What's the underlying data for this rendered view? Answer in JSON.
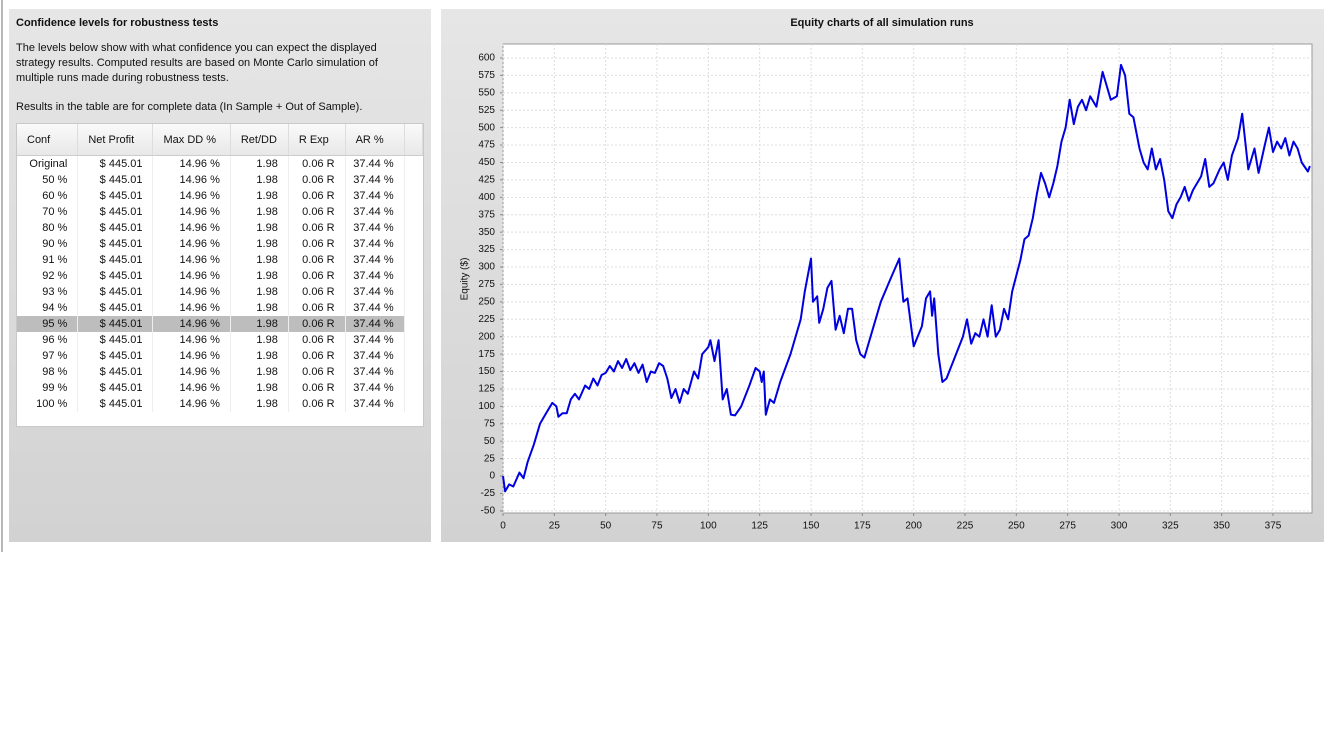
{
  "left_panel": {
    "title": "Confidence levels for robustness tests",
    "description": "The levels below show with what confidence you can expect the displayed strategy results. Computed results are based on Monte Carlo simulation of multiple runs made during robustness tests.",
    "note": "Results in the table are for complete data (In Sample + Out of Sample)."
  },
  "table": {
    "columns": [
      "Conf",
      "Net Profit",
      "Max DD %",
      "Ret/DD",
      "R Exp",
      "AR %"
    ],
    "rows": [
      [
        "Original",
        "$ 445.01",
        "14.96 %",
        "1.98",
        "0.06 R",
        "37.44 %"
      ],
      [
        "50 %",
        "$ 445.01",
        "14.96 %",
        "1.98",
        "0.06 R",
        "37.44 %"
      ],
      [
        "60 %",
        "$ 445.01",
        "14.96 %",
        "1.98",
        "0.06 R",
        "37.44 %"
      ],
      [
        "70 %",
        "$ 445.01",
        "14.96 %",
        "1.98",
        "0.06 R",
        "37.44 %"
      ],
      [
        "80 %",
        "$ 445.01",
        "14.96 %",
        "1.98",
        "0.06 R",
        "37.44 %"
      ],
      [
        "90 %",
        "$ 445.01",
        "14.96 %",
        "1.98",
        "0.06 R",
        "37.44 %"
      ],
      [
        "91 %",
        "$ 445.01",
        "14.96 %",
        "1.98",
        "0.06 R",
        "37.44 %"
      ],
      [
        "92 %",
        "$ 445.01",
        "14.96 %",
        "1.98",
        "0.06 R",
        "37.44 %"
      ],
      [
        "93 %",
        "$ 445.01",
        "14.96 %",
        "1.98",
        "0.06 R",
        "37.44 %"
      ],
      [
        "94 %",
        "$ 445.01",
        "14.96 %",
        "1.98",
        "0.06 R",
        "37.44 %"
      ],
      [
        "95 %",
        "$ 445.01",
        "14.96 %",
        "1.98",
        "0.06 R",
        "37.44 %"
      ],
      [
        "96 %",
        "$ 445.01",
        "14.96 %",
        "1.98",
        "0.06 R",
        "37.44 %"
      ],
      [
        "97 %",
        "$ 445.01",
        "14.96 %",
        "1.98",
        "0.06 R",
        "37.44 %"
      ],
      [
        "98 %",
        "$ 445.01",
        "14.96 %",
        "1.98",
        "0.06 R",
        "37.44 %"
      ],
      [
        "99 %",
        "$ 445.01",
        "14.96 %",
        "1.98",
        "0.06 R",
        "37.44 %"
      ],
      [
        "100 %",
        "$ 445.01",
        "14.96 %",
        "1.98",
        "0.06 R",
        "37.44 %"
      ]
    ]
  },
  "chart_data": {
    "type": "line",
    "title": "Equity charts of all simulation runs",
    "y_label": "Equity ($)",
    "x": [
      0,
      1,
      3,
      5,
      8,
      10,
      12,
      15,
      18,
      21,
      24,
      26,
      27,
      29,
      31,
      33,
      35,
      37,
      40,
      42,
      44,
      46,
      48,
      50,
      52,
      54,
      56,
      58,
      60,
      62,
      64,
      66,
      68,
      70,
      72,
      74,
      76,
      78,
      80,
      82,
      84,
      86,
      88,
      90,
      93,
      95,
      97,
      100,
      101,
      103,
      105,
      107,
      109,
      111,
      113,
      116,
      120,
      123,
      125,
      126,
      127,
      128,
      130,
      132,
      135,
      140,
      145,
      147,
      150,
      151,
      153,
      154,
      156,
      158,
      160,
      162,
      164,
      166,
      168,
      170,
      172,
      174,
      176,
      180,
      184,
      189,
      193,
      195,
      197,
      200,
      204,
      206,
      208,
      209,
      210,
      212,
      214,
      216,
      220,
      224,
      226,
      228,
      230,
      232,
      234,
      236,
      238,
      240,
      242,
      244,
      246,
      248,
      252,
      254,
      256,
      258,
      260,
      262,
      264,
      266,
      268,
      270,
      272,
      274,
      276,
      278,
      280,
      282,
      284,
      286,
      289,
      292,
      294,
      296,
      299,
      301,
      303,
      305,
      307,
      310,
      312,
      314,
      316,
      318,
      320,
      322,
      324,
      326,
      328,
      330,
      332,
      334,
      336,
      340,
      342,
      344,
      346,
      349,
      351,
      353,
      355,
      358,
      360,
      363,
      366,
      368,
      371,
      373,
      375,
      377,
      379,
      381,
      383,
      385,
      387,
      389,
      392,
      393
    ],
    "series": [
      {
        "color": "#0000e0",
        "values": [
          0,
          -22,
          -12,
          -15,
          5,
          -3,
          20,
          45,
          75,
          90,
          105,
          100,
          85,
          90,
          90,
          110,
          118,
          110,
          130,
          125,
          140,
          130,
          145,
          148,
          158,
          150,
          165,
          155,
          168,
          152,
          162,
          148,
          160,
          135,
          150,
          148,
          162,
          158,
          140,
          112,
          125,
          105,
          125,
          118,
          150,
          140,
          175,
          185,
          195,
          165,
          195,
          110,
          125,
          88,
          87,
          100,
          130,
          155,
          150,
          135,
          150,
          88,
          110,
          105,
          135,
          175,
          225,
          265,
          312,
          250,
          258,
          220,
          240,
          270,
          280,
          210,
          230,
          205,
          240,
          240,
          195,
          175,
          170,
          210,
          250,
          285,
          312,
          250,
          255,
          186,
          215,
          255,
          265,
          230,
          255,
          175,
          135,
          140,
          170,
          200,
          225,
          190,
          205,
          200,
          225,
          200,
          245,
          200,
          210,
          240,
          225,
          265,
          310,
          340,
          345,
          370,
          405,
          435,
          420,
          400,
          420,
          445,
          480,
          500,
          540,
          505,
          530,
          540,
          525,
          545,
          530,
          580,
          560,
          540,
          545,
          590,
          575,
          520,
          515,
          470,
          450,
          440,
          470,
          440,
          455,
          425,
          380,
          370,
          390,
          400,
          415,
          395,
          410,
          430,
          455,
          415,
          420,
          440,
          450,
          425,
          460,
          485,
          520,
          440,
          470,
          435,
          475,
          500,
          465,
          480,
          470,
          485,
          460,
          480,
          470,
          450,
          437,
          445
        ]
      }
    ],
    "xlim": [
      0,
      394
    ],
    "ylim": [
      -53,
      620
    ],
    "xticks": [
      0,
      25,
      50,
      75,
      100,
      125,
      150,
      175,
      200,
      225,
      250,
      275,
      300,
      325,
      350,
      375
    ],
    "yticks": [
      -50,
      -25,
      0,
      25,
      50,
      75,
      100,
      125,
      150,
      175,
      200,
      225,
      250,
      275,
      300,
      325,
      350,
      375,
      400,
      425,
      450,
      475,
      500,
      525,
      550,
      575,
      600
    ],
    "grid": true
  }
}
